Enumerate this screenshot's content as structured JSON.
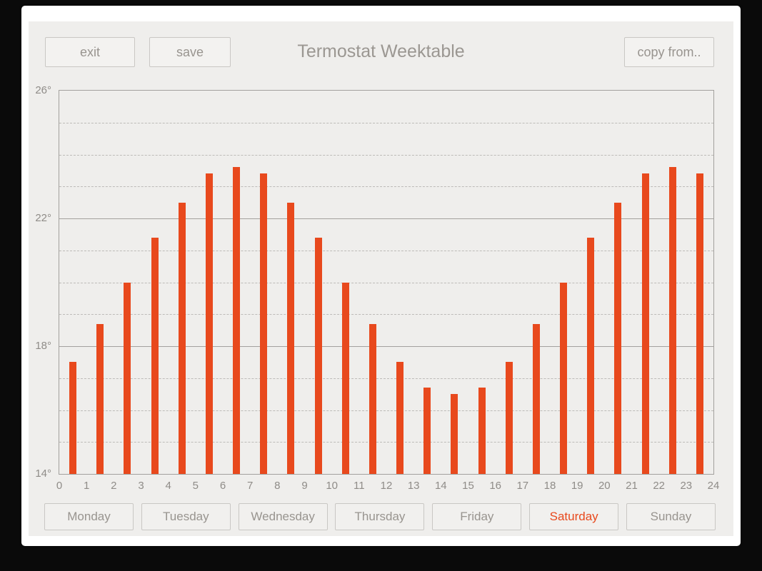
{
  "header": {
    "exit_label": "exit",
    "save_label": "save",
    "title": "Termostat Weektable",
    "copy_from_label": "copy from.."
  },
  "chart_data": {
    "type": "bar",
    "title": "Termostat Weektable",
    "xlabel": "",
    "ylabel": "",
    "x_hours": [
      0,
      1,
      2,
      3,
      4,
      5,
      6,
      7,
      8,
      9,
      10,
      11,
      12,
      13,
      14,
      15,
      16,
      17,
      18,
      19,
      20,
      21,
      22,
      23
    ],
    "values": [
      17.5,
      18.7,
      20.0,
      21.4,
      22.5,
      23.4,
      23.6,
      23.4,
      22.5,
      21.4,
      20.0,
      18.7,
      17.5,
      16.7,
      16.5,
      16.7,
      17.5,
      18.7,
      20.0,
      21.4,
      22.5,
      23.4,
      23.6,
      23.4
    ],
    "ylim": [
      14,
      26
    ],
    "yticks_major": [
      14,
      18,
      22,
      26
    ],
    "ytick_labels": [
      "14°",
      "18°",
      "22°",
      "26°"
    ],
    "yticks_minor": [
      15,
      16,
      17,
      19,
      20,
      21,
      23,
      24,
      25
    ],
    "xticks": [
      0,
      1,
      2,
      3,
      4,
      5,
      6,
      7,
      8,
      9,
      10,
      11,
      12,
      13,
      14,
      15,
      16,
      17,
      18,
      19,
      20,
      21,
      22,
      23,
      24
    ],
    "bar_color": "#e8491d",
    "grid": {
      "major_style": "solid",
      "minor_style": "dashed",
      "grid_on": true
    },
    "legend": "none"
  },
  "days": {
    "items": [
      {
        "label": "Monday",
        "selected": false
      },
      {
        "label": "Tuesday",
        "selected": false
      },
      {
        "label": "Wednesday",
        "selected": false
      },
      {
        "label": "Thursday",
        "selected": false
      },
      {
        "label": "Friday",
        "selected": false
      },
      {
        "label": "Saturday",
        "selected": true
      },
      {
        "label": "Sunday",
        "selected": false
      }
    ]
  },
  "colors": {
    "accent": "#e8491d",
    "screen_bg": "#efeeec",
    "panel_bg": "#ffffff",
    "muted_text": "#98948f",
    "grid_major": "#a3a19e",
    "grid_minor": "#bdbbb8",
    "page_bg": "#0a0a0a"
  }
}
